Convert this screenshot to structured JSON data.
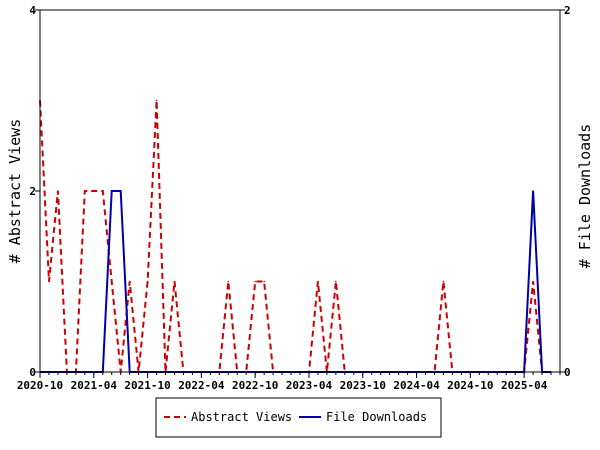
{
  "chart_data": {
    "type": "line",
    "x_ticks": [
      "2020-10",
      "2021-04",
      "2021-10",
      "2022-04",
      "2022-10",
      "2023-04",
      "2023-10",
      "2024-04",
      "2024-10",
      "2025-04"
    ],
    "y_left": {
      "label": "# Abstract Views",
      "ylim": [
        0,
        4
      ],
      "ticks": [
        "0",
        "2",
        "4"
      ]
    },
    "y_right": {
      "label": "# File Downloads",
      "ylim": [
        0,
        2
      ],
      "ticks": [
        "0",
        "2"
      ]
    },
    "legend_position": "bottom",
    "series": [
      {
        "name": "Abstract Views",
        "axis": "left",
        "color": "#cc0000",
        "style": "dashed",
        "x": [
          "2020-10",
          "2020-11",
          "2020-12",
          "2021-01",
          "2021-02",
          "2021-03",
          "2021-04",
          "2021-05",
          "2021-06",
          "2021-07",
          "2021-08",
          "2021-09",
          "2021-10",
          "2021-11",
          "2021-12",
          "2022-01",
          "2022-02",
          "2022-03",
          "2022-04",
          "2022-05",
          "2022-06",
          "2022-07",
          "2022-08",
          "2022-09",
          "2022-10",
          "2022-11",
          "2022-12",
          "2023-01",
          "2023-02",
          "2023-03",
          "2023-04",
          "2023-05",
          "2023-06",
          "2023-07",
          "2023-08",
          "2023-09",
          "2023-10",
          "2023-11",
          "2023-12",
          "2024-01",
          "2024-02",
          "2024-03",
          "2024-04",
          "2024-05",
          "2024-06",
          "2024-07",
          "2024-08",
          "2024-09",
          "2024-10",
          "2024-11",
          "2024-12",
          "2025-01",
          "2025-02",
          "2025-03",
          "2025-04",
          "2025-05",
          "2025-06",
          "2025-07"
        ],
        "values": [
          3,
          1,
          2,
          0,
          0,
          2,
          2,
          2,
          1,
          0,
          1,
          0,
          1,
          3,
          0,
          1,
          0,
          0,
          0,
          0,
          0,
          1,
          0,
          0,
          1,
          1,
          0,
          0,
          0,
          0,
          0,
          1,
          0,
          1,
          0,
          0,
          0,
          0,
          0,
          0,
          0,
          0,
          0,
          0,
          0,
          1,
          0,
          0,
          0,
          0,
          0,
          0,
          0,
          0,
          0,
          1,
          0,
          0
        ]
      },
      {
        "name": "File Downloads",
        "axis": "right",
        "color": "#0000aa",
        "style": "solid",
        "x": [
          "2020-10",
          "2020-11",
          "2020-12",
          "2021-01",
          "2021-02",
          "2021-03",
          "2021-04",
          "2021-05",
          "2021-06",
          "2021-07",
          "2021-08",
          "2021-09",
          "2021-10",
          "2021-11",
          "2021-12",
          "2022-01",
          "2022-02",
          "2022-03",
          "2022-04",
          "2022-05",
          "2022-06",
          "2022-07",
          "2022-08",
          "2022-09",
          "2022-10",
          "2022-11",
          "2022-12",
          "2023-01",
          "2023-02",
          "2023-03",
          "2023-04",
          "2023-05",
          "2023-06",
          "2023-07",
          "2023-08",
          "2023-09",
          "2023-10",
          "2023-11",
          "2023-12",
          "2024-01",
          "2024-02",
          "2024-03",
          "2024-04",
          "2024-05",
          "2024-06",
          "2024-07",
          "2024-08",
          "2024-09",
          "2024-10",
          "2024-11",
          "2024-12",
          "2025-01",
          "2025-02",
          "2025-03",
          "2025-04",
          "2025-05",
          "2025-06",
          "2025-07"
        ],
        "values": [
          0,
          0,
          0,
          0,
          0,
          0,
          0,
          0,
          1,
          1,
          0,
          0,
          0,
          0,
          0,
          0,
          0,
          0,
          0,
          0,
          0,
          0,
          0,
          0,
          0,
          0,
          0,
          0,
          0,
          0,
          0,
          0,
          0,
          0,
          0,
          0,
          0,
          0,
          0,
          0,
          0,
          0,
          0,
          0,
          0,
          0,
          0,
          0,
          0,
          0,
          0,
          0,
          0,
          0,
          0,
          1,
          0,
          0
        ]
      }
    ]
  }
}
